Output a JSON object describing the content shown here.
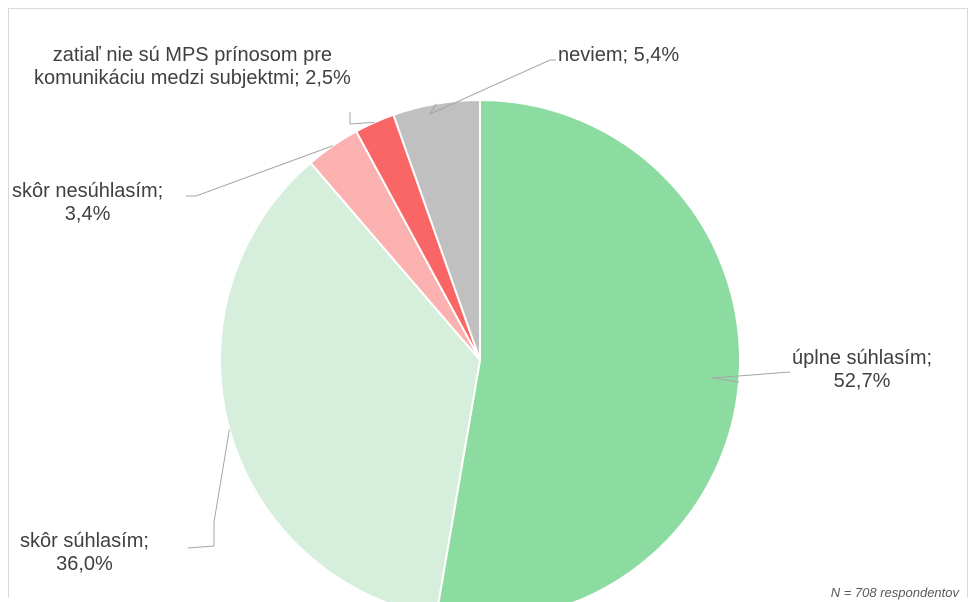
{
  "chart_data": {
    "type": "pie",
    "slices": [
      {
        "label_lines": [
          "úplne súhlasím;",
          "52,7%"
        ],
        "value": 52.7,
        "color": "#8cdba0"
      },
      {
        "label_lines": [
          "skôr súhlasím;",
          "36,0%"
        ],
        "value": 36.0,
        "color": "#d5efdc"
      },
      {
        "label_lines": [
          "skôr nesúhlasím;",
          "3,4%"
        ],
        "value": 3.4,
        "color": "#fcb1b1"
      },
      {
        "label_lines": [
          "zatiaľ nie sú MPS prínosom pre",
          "komunikáciu medzi subjektmi; 2,5%"
        ],
        "value": 2.5,
        "color": "#fa6666"
      },
      {
        "label_lines": [
          "neviem; 5,4%"
        ],
        "value": 5.4,
        "color": "#c0c0c0"
      }
    ],
    "note": "N = 708 respondentov"
  }
}
